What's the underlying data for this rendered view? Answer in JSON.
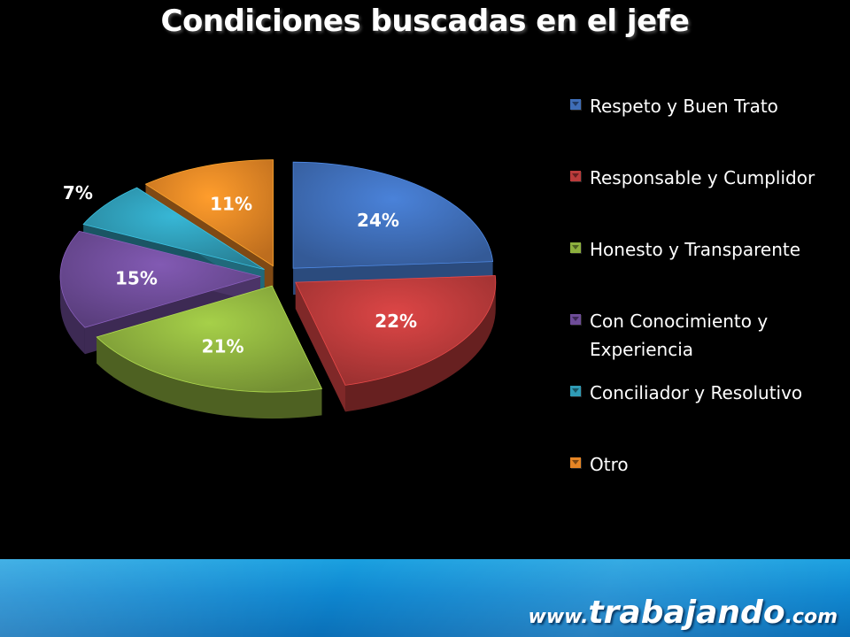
{
  "title": "Condiciones buscadas en el jefe",
  "chart_data": {
    "type": "pie",
    "title": "Condiciones buscadas en el jefe",
    "style": "3d-exploded",
    "legend_position": "right",
    "categories": [
      "Respeto y Buen Trato",
      "Responsable y Cumplidor",
      "Honesto y Transparente",
      "Con Conocimiento y Experiencia",
      "Conciliador y Resolutivo",
      "Otro"
    ],
    "values": [
      24,
      22,
      21,
      15,
      7,
      11
    ],
    "labels": [
      "24%",
      "22%",
      "21%",
      "15%",
      "7%",
      "11%"
    ],
    "colors": [
      "#3f6eb8",
      "#bb3b3b",
      "#8db03e",
      "#6e4c98",
      "#2f9bb5",
      "#e68525"
    ]
  },
  "legend": {
    "items": [
      {
        "label": "Respeto y Buen Trato",
        "color": "#3f6eb8"
      },
      {
        "label": "Responsable y Cumplidor",
        "color": "#bb3b3b"
      },
      {
        "label": "Honesto y Transparente",
        "color": "#8db03e"
      },
      {
        "label": "Con Conocimiento y Experiencia",
        "color": "#6e4c98"
      },
      {
        "label": "Conciliador y Resolutivo",
        "color": "#2f9bb5"
      },
      {
        "label": "Otro",
        "color": "#e68525"
      }
    ]
  },
  "footer": {
    "brand_prefix": "www.",
    "brand_name": "trabajando",
    "brand_suffix": ".com",
    "background": "#0e86cf"
  }
}
